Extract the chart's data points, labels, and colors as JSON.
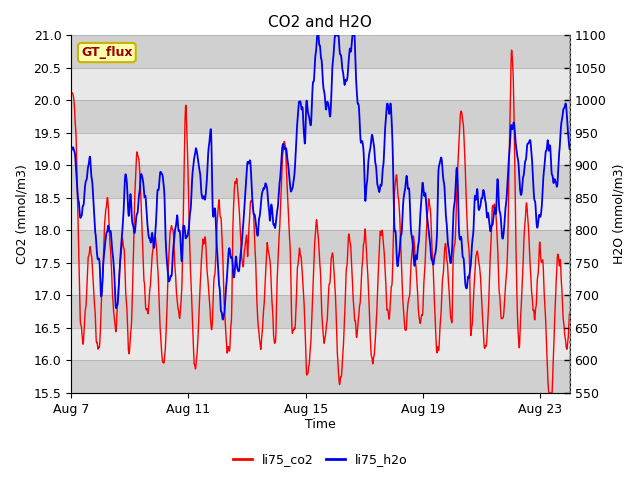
{
  "title": "CO2 and H2O",
  "xlabel": "Time",
  "ylabel_left": "CO2 (mmol/m3)",
  "ylabel_right": "H2O (mmol/m3)",
  "co2_ylim": [
    15.5,
    21.0
  ],
  "h2o_ylim": [
    550,
    1100
  ],
  "co2_yticks": [
    15.5,
    16.0,
    16.5,
    17.0,
    17.5,
    18.0,
    18.5,
    19.0,
    19.5,
    20.0,
    20.5,
    21.0
  ],
  "h2o_yticks": [
    550,
    600,
    650,
    700,
    750,
    800,
    850,
    900,
    950,
    1000,
    1050,
    1100
  ],
  "xtick_labels": [
    "Aug 7",
    "Aug 11",
    "Aug 15",
    "Aug 19",
    "Aug 23"
  ],
  "xtick_positions": [
    0,
    4,
    8,
    12,
    16
  ],
  "total_days": 17,
  "co2_color": "#FF0000",
  "h2o_color": "#0000EE",
  "co2_linewidth": 1.0,
  "h2o_linewidth": 1.3,
  "background_color": "#ffffff",
  "plot_bg_color": "#e8e8e8",
  "stripe_color": "#d0d0d0",
  "gt_flux_label": "GT_flux",
  "gt_flux_bg": "#ffffb0",
  "gt_flux_border": "#c8b400",
  "gt_flux_text_color": "#990000",
  "legend_co2_label": "li75_co2",
  "legend_h2o_label": "li75_h2o",
  "title_fontsize": 11,
  "axis_label_fontsize": 9,
  "tick_fontsize": 9
}
